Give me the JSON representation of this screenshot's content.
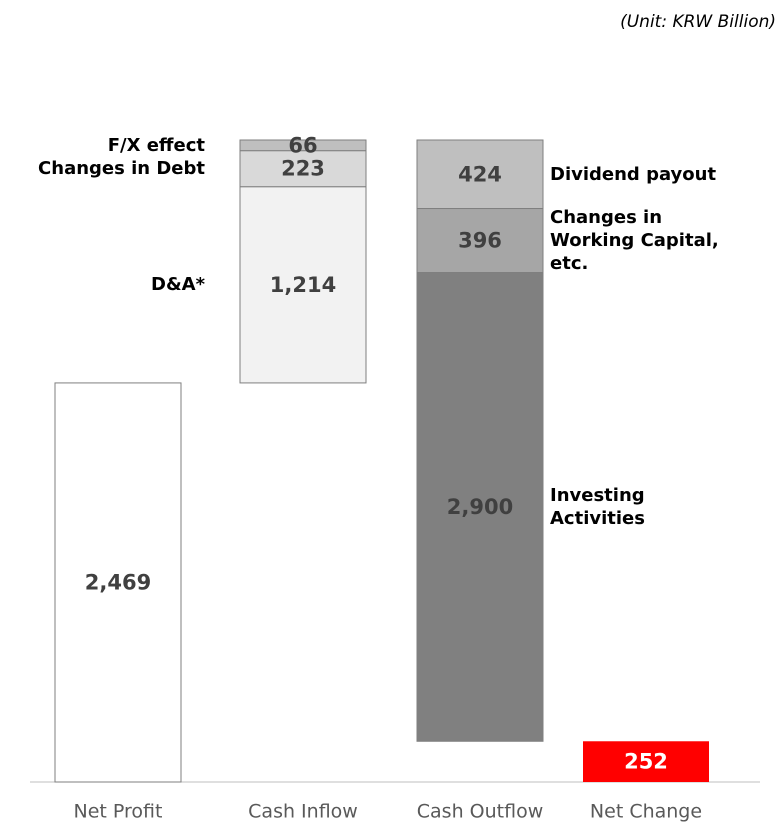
{
  "chart_data": {
    "type": "waterfall",
    "subtitle": "(Unit: KRW Billion)",
    "steps": [
      {
        "category": "Net Profit",
        "kind": "total",
        "segments": [
          {
            "value": 2469,
            "value_label": "2,469",
            "color": "#ffffff",
            "label_color": "#404040"
          }
        ]
      },
      {
        "category": "Cash Inflow",
        "kind": "up",
        "segments": [
          {
            "name": "D&A*",
            "value": 1214,
            "value_label": "1,214",
            "color": "#f2f2f2",
            "label_color": "#404040"
          },
          {
            "name": "Changes in Debt",
            "value": 223,
            "value_label": "223",
            "color": "#d9d9d9",
            "label_color": "#404040"
          },
          {
            "name": "F/X effect",
            "value": 66,
            "value_label": "66",
            "color": "#bfbfbf",
            "label_color": "#404040"
          }
        ]
      },
      {
        "category": "Cash Outflow",
        "kind": "down",
        "segments": [
          {
            "name": "Dividend payout",
            "value": 424,
            "value_label": "424",
            "color": "#bfbfbf",
            "label_color": "#404040"
          },
          {
            "name": "Changes in Working Capital, etc.",
            "value": 396,
            "value_label": "396",
            "color": "#a6a6a6",
            "label_color": "#404040"
          },
          {
            "name": "Investing Activities",
            "value": 2900,
            "value_label": "2,900",
            "color": "#808080",
            "label_color": "#404040"
          }
        ]
      },
      {
        "category": "Net Change",
        "kind": "total",
        "segments": [
          {
            "value": 252,
            "value_label": "252",
            "color": "#ff0000",
            "label_color": "#ffffff"
          }
        ]
      }
    ]
  }
}
